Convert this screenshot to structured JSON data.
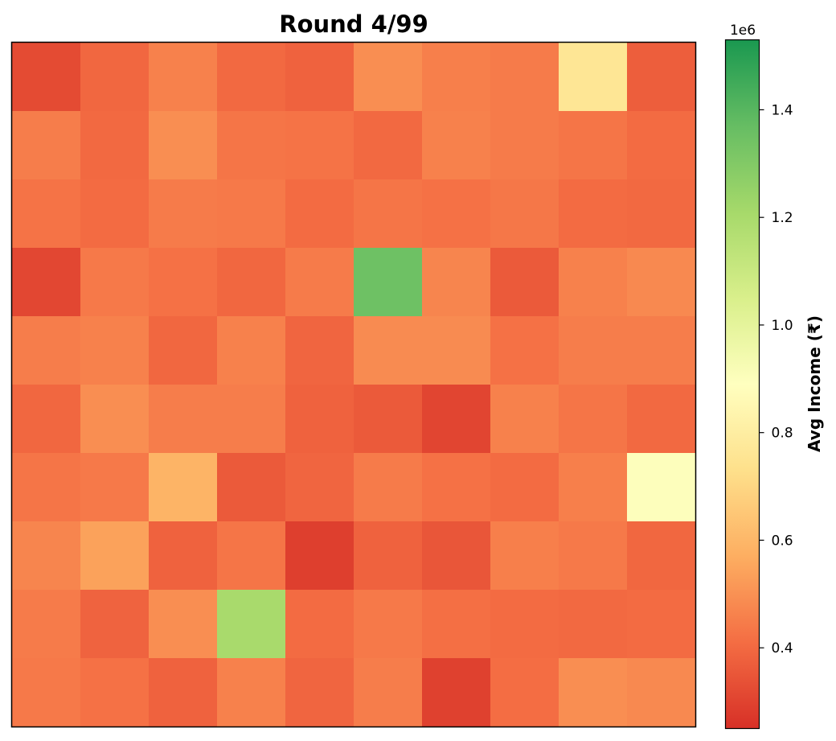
{
  "chart_data": {
    "type": "heatmap",
    "title": "Round 4/99",
    "rows": 10,
    "cols": 10,
    "grid": false,
    "values": [
      [
        320000,
        395000,
        460000,
        400000,
        380000,
        490000,
        455000,
        445000,
        760000,
        370000
      ],
      [
        450000,
        400000,
        490000,
        430000,
        425000,
        400000,
        460000,
        445000,
        430000,
        405000
      ],
      [
        425000,
        405000,
        445000,
        440000,
        405000,
        430000,
        420000,
        435000,
        405000,
        400000
      ],
      [
        310000,
        440000,
        420000,
        395000,
        445000,
        1350000,
        470000,
        360000,
        460000,
        480000
      ],
      [
        450000,
        460000,
        395000,
        460000,
        390000,
        485000,
        485000,
        420000,
        450000,
        450000
      ],
      [
        395000,
        490000,
        450000,
        450000,
        380000,
        360000,
        305000,
        460000,
        430000,
        400000
      ],
      [
        430000,
        440000,
        590000,
        360000,
        390000,
        445000,
        420000,
        405000,
        455000,
        900000
      ],
      [
        470000,
        540000,
        380000,
        430000,
        290000,
        380000,
        350000,
        455000,
        440000,
        395000
      ],
      [
        445000,
        385000,
        490000,
        1200000,
        405000,
        440000,
        415000,
        405000,
        400000,
        405000
      ],
      [
        440000,
        420000,
        380000,
        460000,
        390000,
        450000,
        295000,
        410000,
        490000,
        480000
      ]
    ],
    "colorbar": {
      "label": "Avg Income (₹)",
      "offset_text": "1e6",
      "min": 250000,
      "max": 1530000,
      "ticks": [
        0.4,
        0.6,
        0.8,
        1.0,
        1.2,
        1.4
      ],
      "tick_labels": [
        "0.4",
        "0.6",
        "0.8",
        "1.0",
        "1.2",
        "1.4"
      ],
      "colormap": "RdYlGn",
      "stops": [
        "#d73027",
        "#f46d43",
        "#fdae61",
        "#fee08b",
        "#ffffbf",
        "#d9ef8b",
        "#a6d96a",
        "#66bd63",
        "#1a9850"
      ]
    },
    "xlabel": "",
    "ylabel": ""
  }
}
